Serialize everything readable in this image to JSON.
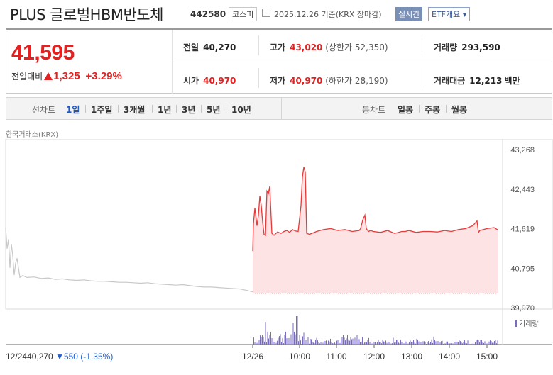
{
  "header": {
    "stock_name": "PLUS 글로벌HBM반도체",
    "code": "442580",
    "market": "코스피",
    "date": "2025.12.26 기준(KRX 장마감)",
    "realtime_label": "실시간",
    "etf_label": "ETF개요 ▾"
  },
  "summary": {
    "price": "41,595",
    "change_label": "전일대비",
    "change_value": "1,325",
    "change_rate": "+3.29%",
    "prev_close_label": "전일",
    "prev_close": "40,270",
    "high_label": "고가",
    "high": "43,020",
    "upper_limit_label": "(상한가",
    "upper_limit": "52,350)",
    "volume_label": "거래량",
    "volume": "293,590",
    "open_label": "시가",
    "open": "40,970",
    "low_label": "저가",
    "low": "40,970",
    "lower_limit_label": "(하한가",
    "lower_limit": "28,190)",
    "amount_label": "거래대금",
    "amount": "12,213",
    "amount_unit": "백만"
  },
  "tabs": {
    "line_label": "선차트",
    "periods": [
      "1일",
      "1주일",
      "3개월",
      "1년",
      "3년",
      "5년",
      "10년"
    ],
    "active_period": "1일",
    "candle_label": "봉차트",
    "candles": [
      "일봉",
      "주봉",
      "월봉"
    ]
  },
  "chart_source": "한국거래소(KRX)",
  "volume_legend": "거래량",
  "prev_day": {
    "date": "12/24",
    "close": "40,270",
    "change": "▼550 (-1.35%)"
  },
  "colors": {
    "up": "#e52020",
    "down": "#2360c8",
    "today_line": "#e83a3a",
    "today_fill": "#fde3e3",
    "prev_line": "#c8c8c8",
    "volume_bar": "#7a6bbf"
  },
  "chart_data": {
    "type": "line",
    "ylim": [
      39970,
      43268
    ],
    "yticks": [
      "43,268",
      "42,443",
      "41,619",
      "40,795",
      "39,970"
    ],
    "xticks": [
      "12/24",
      "12/26",
      "10:00",
      "11:00",
      "12:00",
      "13:00",
      "14:00",
      "15:00"
    ],
    "reference_price": 40270,
    "series": [
      {
        "name": "12/24",
        "x": [
          0,
          2,
          4,
          6,
          8,
          10,
          12,
          14,
          16,
          20,
          24,
          30,
          40,
          50,
          60,
          70,
          80,
          90,
          100,
          110,
          120,
          130,
          140,
          150,
          160,
          170,
          180,
          190,
          200,
          210,
          220,
          230,
          240,
          250,
          260,
          270,
          280,
          290,
          300,
          310,
          320,
          330,
          340,
          348
        ],
        "values": [
          41640,
          41200,
          41400,
          40800,
          41300,
          41050,
          40650,
          40900,
          41000,
          40600,
          40640,
          40600,
          40610,
          40580,
          40590,
          40560,
          40570,
          40550,
          40540,
          40550,
          40530,
          40520,
          40520,
          40510,
          40500,
          40500,
          40490,
          40480,
          40490,
          40470,
          40460,
          40450,
          40440,
          40450,
          40430,
          40410,
          40400,
          40400,
          40390,
          40380,
          40370,
          40360,
          40330,
          40300
        ]
      },
      {
        "name": "12/26",
        "x": [
          0,
          1,
          3,
          6,
          8,
          10,
          12,
          14,
          16,
          18,
          20,
          22,
          24,
          27,
          30,
          35,
          40,
          44,
          48,
          52,
          56,
          60,
          64,
          68,
          70,
          72,
          74,
          76,
          80,
          90,
          100,
          110,
          120,
          130,
          140,
          150,
          152,
          155,
          158,
          160,
          163,
          166,
          170,
          180,
          190,
          200,
          210,
          215,
          220,
          230,
          240,
          250,
          260,
          270,
          280,
          290,
          300,
          310,
          316,
          318,
          320,
          325,
          330,
          340,
          345
        ],
        "values": [
          41150,
          41720,
          42050,
          41680,
          41900,
          42300,
          42100,
          41750,
          41500,
          41480,
          42400,
          42350,
          42500,
          41520,
          41480,
          41550,
          41520,
          41560,
          41580,
          41540,
          41600,
          41570,
          41560,
          42100,
          42700,
          42900,
          42800,
          41520,
          41500,
          41560,
          41600,
          41620,
          41580,
          41600,
          41560,
          41580,
          41620,
          41800,
          41900,
          41620,
          41560,
          41580,
          41560,
          41540,
          41580,
          41520,
          41560,
          41560,
          41580,
          41540,
          41560,
          41560,
          41550,
          41580,
          41560,
          41600,
          41620,
          41680,
          41780,
          41540,
          41580,
          41600,
          41620,
          41640,
          41595
        ]
      }
    ]
  }
}
